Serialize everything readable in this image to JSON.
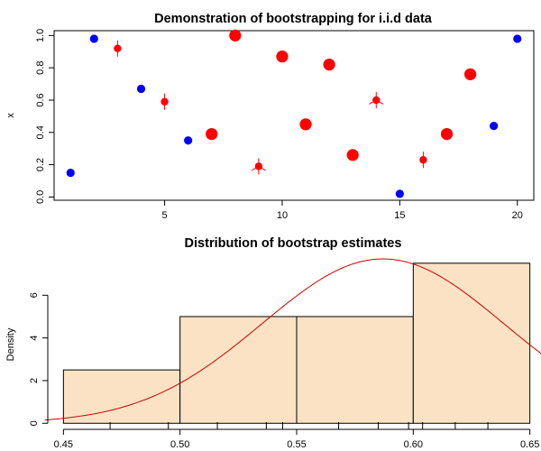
{
  "chart_data": [
    {
      "type": "scatter",
      "title": "Demonstration of bootstrapping for i.i.d data",
      "xlabel": "",
      "ylabel": "x",
      "xlim": [
        0.3,
        20.7
      ],
      "ylim": [
        -0.02,
        1.03
      ],
      "xticks": [
        5,
        10,
        15,
        20
      ],
      "yticks": [
        0.0,
        0.2,
        0.4,
        0.6,
        0.8,
        1.0
      ],
      "ytick_labels": [
        "0.0",
        "0.2",
        "0.4",
        "0.6",
        "0.8",
        "1.0"
      ],
      "grid": false,
      "colors": {
        "not_resampled": "#0000ff",
        "resampled": "#ff0000"
      },
      "points": [
        {
          "x": 1,
          "y": 0.15,
          "color": "#0000ff",
          "count": 0
        },
        {
          "x": 2,
          "y": 0.98,
          "color": "#0000ff",
          "count": 0
        },
        {
          "x": 3,
          "y": 0.92,
          "color": "#ff0000",
          "count": 2
        },
        {
          "x": 4,
          "y": 0.67,
          "color": "#0000ff",
          "count": 0
        },
        {
          "x": 5,
          "y": 0.59,
          "color": "#ff0000",
          "count": 2
        },
        {
          "x": 6,
          "y": 0.35,
          "color": "#0000ff",
          "count": 0
        },
        {
          "x": 7,
          "y": 0.39,
          "color": "#ff0000",
          "count": 1
        },
        {
          "x": 8,
          "y": 1.0,
          "color": "#ff0000",
          "count": 1
        },
        {
          "x": 9,
          "y": 0.19,
          "color": "#ff0000",
          "count": 3
        },
        {
          "x": 10,
          "y": 0.87,
          "color": "#ff0000",
          "count": 1
        },
        {
          "x": 11,
          "y": 0.45,
          "color": "#ff0000",
          "count": 1
        },
        {
          "x": 12,
          "y": 0.82,
          "color": "#ff0000",
          "count": 1
        },
        {
          "x": 13,
          "y": 0.26,
          "color": "#ff0000",
          "count": 1
        },
        {
          "x": 14,
          "y": 0.6,
          "color": "#ff0000",
          "count": 3
        },
        {
          "x": 15,
          "y": 0.02,
          "color": "#0000ff",
          "count": 0
        },
        {
          "x": 16,
          "y": 0.23,
          "color": "#ff0000",
          "count": 2
        },
        {
          "x": 17,
          "y": 0.39,
          "color": "#ff0000",
          "count": 1
        },
        {
          "x": 18,
          "y": 0.76,
          "color": "#ff0000",
          "count": 1
        },
        {
          "x": 19,
          "y": 0.44,
          "color": "#0000ff",
          "count": 0
        },
        {
          "x": 20,
          "y": 0.98,
          "color": "#0000ff",
          "count": 0
        }
      ]
    },
    {
      "type": "bar",
      "subtype": "histogram",
      "title": "Distribution of bootstrap estimates",
      "xlabel": "",
      "ylabel": "Density",
      "xlim": [
        0.446,
        0.654
      ],
      "ylim": [
        -0.2,
        8.0
      ],
      "xticks": [
        0.45,
        0.5,
        0.55,
        0.6,
        0.65
      ],
      "xtick_labels": [
        "0.45",
        "0.50",
        "0.55",
        "0.60",
        "0.65"
      ],
      "yticks": [
        0,
        2,
        4,
        6
      ],
      "grid": false,
      "bar_color": "#fbe2c4",
      "curve_color": "#cc0000",
      "bins": [
        {
          "from": 0.45,
          "to": 0.5,
          "density": 2.5
        },
        {
          "from": 0.5,
          "to": 0.55,
          "density": 5.0
        },
        {
          "from": 0.55,
          "to": 0.6,
          "density": 5.0
        },
        {
          "from": 0.6,
          "to": 0.65,
          "density": 7.5
        }
      ],
      "rug": [
        0.47,
        0.495,
        0.516,
        0.537,
        0.544,
        0.568,
        0.585,
        0.598,
        0.604,
        0.618,
        0.632
      ],
      "normal_curve": {
        "mean": 0.587,
        "sd": 0.0518
      }
    }
  ]
}
